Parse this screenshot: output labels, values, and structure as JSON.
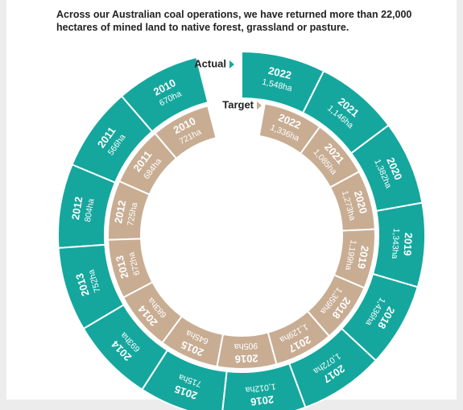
{
  "chart_data": {
    "type": "radial",
    "title": "Across our Australian coal operations, we have returned more than 22,000 hectares of mined land to native forest, grassland or pasture.",
    "categories": [
      "2010",
      "2011",
      "2012",
      "2013",
      "2014",
      "2015",
      "2016",
      "2017",
      "2018",
      "2019",
      "2020",
      "2021",
      "2022"
    ],
    "series": [
      {
        "name": "Actual",
        "color": "#15a79e",
        "values": [
          670,
          566,
          804,
          752,
          693,
          715,
          1012,
          1072,
          1436,
          1343,
          1382,
          1146,
          1548
        ],
        "value_labels": [
          "670ha",
          "566ha",
          "804ha",
          "752ha",
          "693ha",
          "715ha",
          "1,012ha",
          "1,072ha",
          "1,436ha",
          "1,343ha",
          "1,382ha",
          "1,146ha",
          "1,548ha"
        ]
      },
      {
        "name": "Target",
        "color": "#c8ad93",
        "values": [
          721,
          684,
          725,
          672,
          683,
          645,
          905,
          1129,
          1359,
          1199,
          1273,
          1085,
          1336
        ],
        "value_labels": [
          "721ha",
          "684ha",
          "725ha",
          "672ha",
          "683ha",
          "645ha",
          "905ha",
          "1,129ha",
          "1,359ha",
          "1,199ha",
          "1,273ha",
          "1,085ha",
          "1,336ha"
        ]
      }
    ]
  }
}
